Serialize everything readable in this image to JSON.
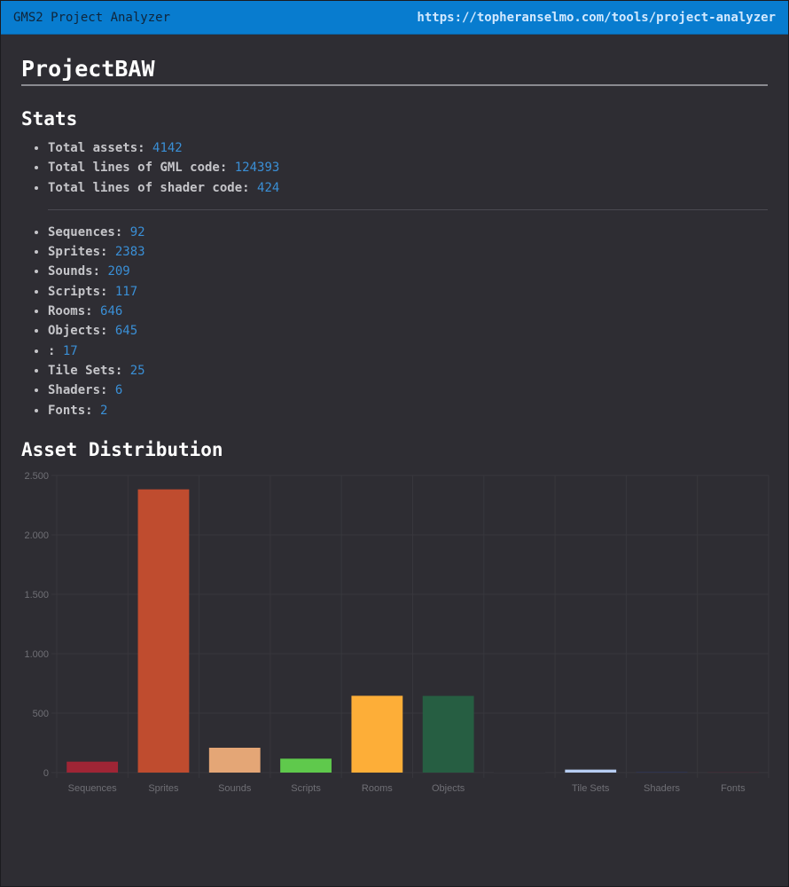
{
  "topbar": {
    "app_title": "GMS2 Project Analyzer",
    "url": "https://topheranselmo.com/tools/project-analyzer"
  },
  "project": {
    "name": "ProjectBAW"
  },
  "stats": {
    "heading": "Stats",
    "totals": [
      {
        "label": "Total assets:",
        "value": "4142"
      },
      {
        "label": "Total lines of GML code:",
        "value": "124393"
      },
      {
        "label": "Total lines of shader code:",
        "value": "424"
      }
    ],
    "assets": [
      {
        "label": "Sequences:",
        "value": "92"
      },
      {
        "label": "Sprites:",
        "value": "2383"
      },
      {
        "label": "Sounds:",
        "value": "209"
      },
      {
        "label": "Scripts:",
        "value": "117"
      },
      {
        "label": "Rooms:",
        "value": "646"
      },
      {
        "label": "Objects:",
        "value": "645"
      },
      {
        "label": ":",
        "value": "17"
      },
      {
        "label": "Tile Sets:",
        "value": "25"
      },
      {
        "label": "Shaders:",
        "value": "6"
      },
      {
        "label": "Fonts:",
        "value": "2"
      }
    ]
  },
  "distribution": {
    "heading": "Asset Distribution"
  },
  "chart_data": {
    "type": "bar",
    "title": "",
    "xlabel": "",
    "ylabel": "",
    "categories": [
      "Sequences",
      "Sprites",
      "Sounds",
      "Scripts",
      "Rooms",
      "Objects",
      "",
      "Tile Sets",
      "Shaders",
      "Fonts"
    ],
    "values": [
      92,
      2383,
      209,
      117,
      646,
      645,
      17,
      25,
      6,
      2
    ],
    "colors": [
      "#9f2535",
      "#bf4c2f",
      "#e4a676",
      "#5fc94c",
      "#fdae38",
      "#265e42",
      "#2e2d33",
      "#b7cdf2",
      "#2f3555",
      "#5a2434"
    ],
    "ylim": [
      0,
      2500
    ],
    "yticks": [
      0,
      500,
      1000,
      1500,
      2000,
      2500
    ],
    "ytick_labels": [
      "0",
      "500",
      "1.000",
      "1.500",
      "2.000",
      "2.500"
    ],
    "grid": true,
    "legend": "none"
  }
}
